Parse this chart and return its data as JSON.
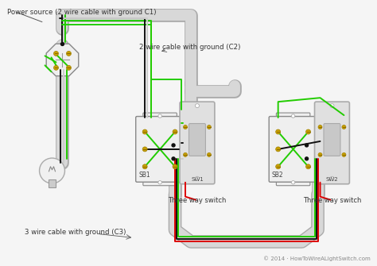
{
  "background_color": "#f5f5f5",
  "wire_green": "#22cc00",
  "wire_black": "#111111",
  "wire_white": "#cccccc",
  "wire_red": "#dd0000",
  "conduit_color": "#d8d8d8",
  "conduit_edge": "#aaaaaa",
  "box_fill": "#efefef",
  "box_stroke": "#888888",
  "switch_plate_fill": "#e0e0e0",
  "switch_plate_edge": "#aaaaaa",
  "switch_body_fill": "#c8c8c8",
  "screw_color": "#c8a000",
  "screw_edge": "#a08000",
  "bulb_fill": "#f0f0f0",
  "label_power": "Power source (2 wire cable with ground C1)",
  "label_c2": "2 wire cable with ground (C2)",
  "label_c3": "3 wire cable with ground (C3)",
  "label_sw1_text": "Three way switch",
  "label_sw2_text": "Three way switch",
  "label_sb1": "SB1",
  "label_sb2": "SB2",
  "label_sw1": "SW1",
  "label_sw2": "SW2",
  "copyright": "© 2014 · HowToWireALightSwitch.com",
  "lw_wire": 1.4,
  "lw_conduit_inner": 9,
  "lw_conduit_outer": 11
}
